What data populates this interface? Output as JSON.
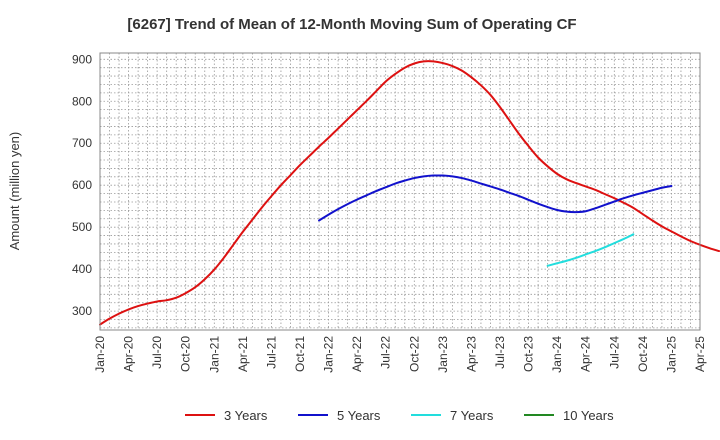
{
  "chart_data": {
    "type": "line",
    "title": "[6267]  Trend of Mean of 12-Month Moving Sum of Operating CF",
    "ylabel": "Amount (million yen)",
    "xlabel": "",
    "ylim": [
      255,
      915
    ],
    "yticks": [
      300,
      400,
      500,
      600,
      700,
      800,
      900
    ],
    "x_axis_start": "2020-01",
    "x_axis_end": "2025-04",
    "xticks": [
      "Jan-20",
      "Apr-20",
      "Jul-20",
      "Oct-20",
      "Jan-21",
      "Apr-21",
      "Jul-21",
      "Oct-21",
      "Jan-22",
      "Apr-22",
      "Jul-22",
      "Oct-22",
      "Jan-23",
      "Apr-23",
      "Jul-23",
      "Oct-23",
      "Jan-24",
      "Apr-24",
      "Jul-24",
      "Oct-24",
      "Jan-25",
      "Apr-25"
    ],
    "grid": true,
    "legend_position": "bottom",
    "series": [
      {
        "name": "3 Years",
        "color": "#dd1111",
        "start": "2020-01",
        "values": [
          268,
          282,
          294,
          304,
          312,
          318,
          323,
          326,
          332,
          343,
          357,
          376,
          399,
          427,
          458,
          489,
          518,
          547,
          574,
          600,
          624,
          648,
          670,
          692,
          713,
          735,
          757,
          779,
          801,
          824,
          847,
          865,
          880,
          890,
          895,
          895,
          891,
          884,
          873,
          857,
          838,
          815,
          786,
          754,
          722,
          693,
          666,
          645,
          627,
          614,
          605,
          597,
          589,
          579,
          569,
          558,
          546,
          531,
          516,
          502,
          490,
          478,
          467,
          458,
          450,
          443
        ]
      },
      {
        "name": "5 Years",
        "color": "#1111cc",
        "start": "2021-12",
        "values": [
          516,
          530,
          543,
          555,
          566,
          576,
          586,
          595,
          604,
          611,
          617,
          621,
          623,
          623,
          621,
          617,
          611,
          604,
          597,
          590,
          582,
          574,
          565,
          556,
          548,
          541,
          537,
          536,
          538,
          545,
          553,
          561,
          569,
          576,
          582,
          588,
          594,
          598
        ]
      },
      {
        "name": "7 Years",
        "color": "#22dddd",
        "start": "2023-12",
        "values": [
          408,
          414,
          420,
          427,
          435,
          443,
          452,
          462,
          472,
          483
        ]
      },
      {
        "name": "10 Years",
        "color": "#228822",
        "start": "2025-01",
        "values": []
      }
    ]
  }
}
